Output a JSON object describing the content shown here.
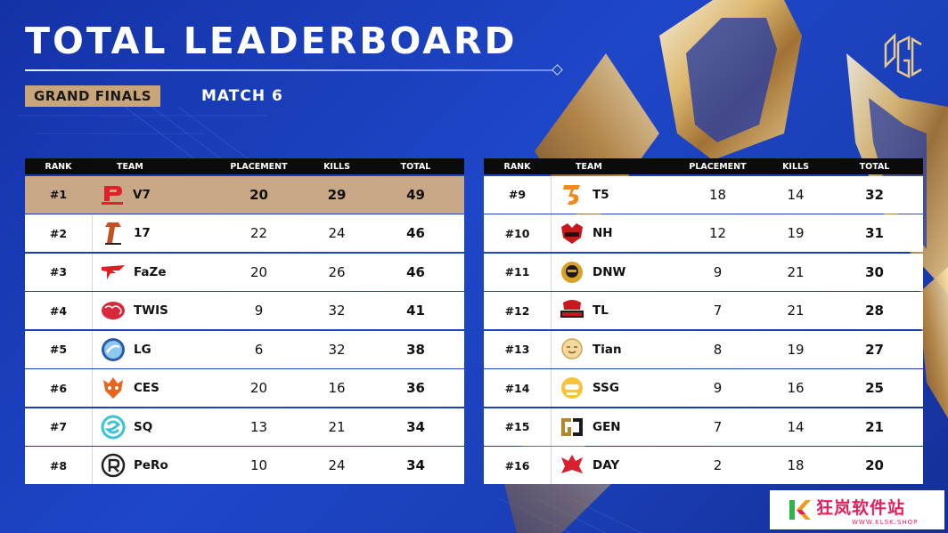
{
  "header": {
    "title": "TOTAL LEADERBOARD",
    "badge": "GRAND FINALS",
    "subtitle": "MATCH 6",
    "brand_logo": "pgc-logo"
  },
  "columns": {
    "rank": "RANK",
    "team": "TEAM",
    "placement": "PLACEMENT",
    "kills": "KILLS",
    "total": "TOTAL"
  },
  "colors": {
    "background": "#1e46c8",
    "highlight_row": "#c8a887",
    "badge": "#c9a57b",
    "header_bar": "#0b0b0b",
    "gold": "#d4a84a"
  },
  "left_rows": [
    {
      "rank": "#1",
      "team": "V7",
      "logo": "v7-logo",
      "placement": "20",
      "kills": "29",
      "total": "49"
    },
    {
      "rank": "#2",
      "team": "17",
      "logo": "17gaming-logo",
      "placement": "22",
      "kills": "24",
      "total": "46"
    },
    {
      "rank": "#3",
      "team": "FaZe",
      "logo": "faze-logo",
      "placement": "20",
      "kills": "26",
      "total": "46"
    },
    {
      "rank": "#4",
      "team": "TWIS",
      "logo": "twis-logo",
      "placement": "9",
      "kills": "32",
      "total": "41"
    },
    {
      "rank": "#5",
      "team": "LG",
      "logo": "lg-logo",
      "placement": "6",
      "kills": "32",
      "total": "38"
    },
    {
      "rank": "#6",
      "team": "CES",
      "logo": "ces-logo",
      "placement": "20",
      "kills": "16",
      "total": "36"
    },
    {
      "rank": "#7",
      "team": "SQ",
      "logo": "sq-logo",
      "placement": "13",
      "kills": "21",
      "total": "34"
    },
    {
      "rank": "#8",
      "team": "PeRo",
      "logo": "pero-logo",
      "placement": "10",
      "kills": "24",
      "total": "34"
    }
  ],
  "right_rows": [
    {
      "rank": "#9",
      "team": "T5",
      "logo": "t5-logo",
      "placement": "18",
      "kills": "14",
      "total": "32"
    },
    {
      "rank": "#10",
      "team": "NH",
      "logo": "nh-logo",
      "placement": "12",
      "kills": "19",
      "total": "31"
    },
    {
      "rank": "#11",
      "team": "DNW",
      "logo": "dnw-logo",
      "placement": "9",
      "kills": "21",
      "total": "30"
    },
    {
      "rank": "#12",
      "team": "TL",
      "logo": "tl-logo",
      "placement": "7",
      "kills": "21",
      "total": "28"
    },
    {
      "rank": "#13",
      "team": "Tian",
      "logo": "tian-logo",
      "placement": "8",
      "kills": "19",
      "total": "27"
    },
    {
      "rank": "#14",
      "team": "SSG",
      "logo": "ssg-logo",
      "placement": "9",
      "kills": "16",
      "total": "25"
    },
    {
      "rank": "#15",
      "team": "GEN",
      "logo": "gen-logo",
      "placement": "7",
      "kills": "14",
      "total": "21"
    },
    {
      "rank": "#16",
      "team": "DAY",
      "logo": "day-logo",
      "placement": "2",
      "kills": "18",
      "total": "20"
    }
  ],
  "watermark": {
    "main": "狂岚软件站",
    "sub": "WWW.KLSK.SHOP"
  }
}
